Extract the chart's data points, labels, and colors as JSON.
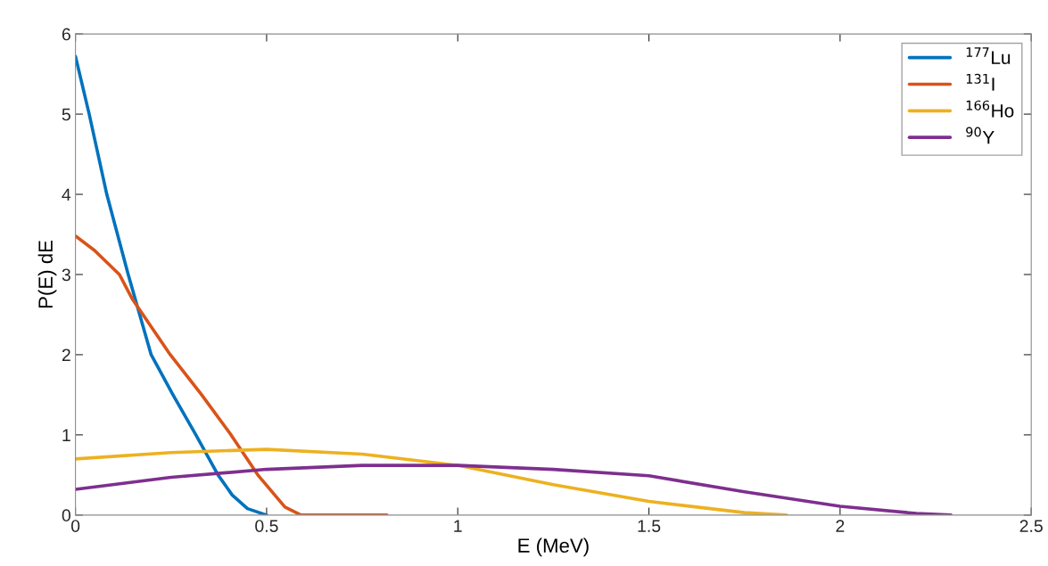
{
  "chart_data": {
    "type": "line",
    "xlabel": "E (MeV)",
    "ylabel": "P(E) dE",
    "xlim": [
      0,
      2.5
    ],
    "ylim": [
      0,
      6
    ],
    "xticks": [
      0,
      0.5,
      1,
      1.5,
      2,
      2.5
    ],
    "yticks": [
      0,
      1,
      2,
      3,
      4,
      5,
      6
    ],
    "grid": false,
    "legend": "top right",
    "marker": "none",
    "line_style": "solid",
    "series": [
      {
        "name": "$^{177}$Lu",
        "color": "#0072bd",
        "x": [
          0,
          0.036,
          0.082,
          0.138,
          0.198,
          0.255,
          0.315,
          0.373,
          0.41,
          0.45,
          0.5
        ],
        "values": [
          5.72,
          5,
          4,
          3,
          2,
          1.5,
          1,
          0.5,
          0.25,
          0.08,
          0
        ]
      },
      {
        "name": "$^{131}$I",
        "color": "#d95319",
        "x": [
          0,
          0.05,
          0.115,
          0.148,
          0.248,
          0.33,
          0.407,
          0.477,
          0.548,
          0.59,
          0.815
        ],
        "values": [
          3.48,
          3.3,
          3,
          2.7,
          2,
          1.5,
          1,
          0.5,
          0.1,
          0,
          0
        ]
      },
      {
        "name": "$^{166}$Ho",
        "color": "#edb120",
        "x": [
          0,
          0.25,
          0.5,
          0.75,
          1,
          1.25,
          1.5,
          1.75,
          1.86
        ],
        "values": [
          0.7,
          0.78,
          0.82,
          0.76,
          0.62,
          0.38,
          0.17,
          0.03,
          0
        ]
      },
      {
        "name": "$^{90}$Y",
        "color": "#7e2f8e",
        "x": [
          0,
          0.25,
          0.5,
          0.75,
          1,
          1.25,
          1.5,
          1.75,
          2,
          2.2,
          2.29
        ],
        "values": [
          0.32,
          0.47,
          0.57,
          0.62,
          0.62,
          0.57,
          0.49,
          0.29,
          0.11,
          0.02,
          0
        ]
      }
    ]
  }
}
